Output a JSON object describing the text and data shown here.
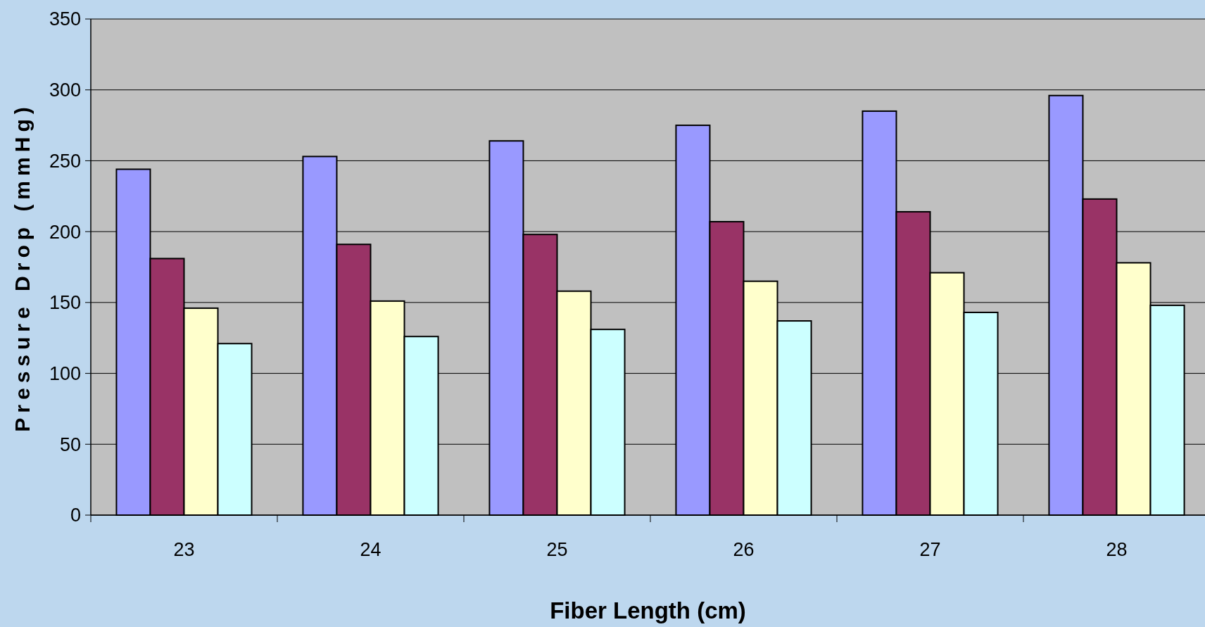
{
  "chart_data": {
    "type": "bar",
    "xlabel": "Fiber Length (cm)",
    "ylabel": "Pressure Drop (mmHg)",
    "categories": [
      "23",
      "24",
      "25",
      "26",
      "27",
      "28"
    ],
    "series": [
      {
        "color": "#9999ff",
        "values": [
          244,
          253,
          264,
          275,
          285,
          296
        ]
      },
      {
        "color": "#993366",
        "values": [
          181,
          191,
          198,
          207,
          214,
          223
        ]
      },
      {
        "color": "#ffffcc",
        "values": [
          146,
          151,
          158,
          165,
          171,
          178
        ]
      },
      {
        "color": "#ccffff",
        "values": [
          121,
          126,
          131,
          137,
          143,
          148
        ]
      }
    ],
    "ylim": [
      0,
      350
    ],
    "yticks": [
      0,
      50,
      100,
      150,
      200,
      250,
      300,
      350
    ],
    "grid": "y"
  }
}
